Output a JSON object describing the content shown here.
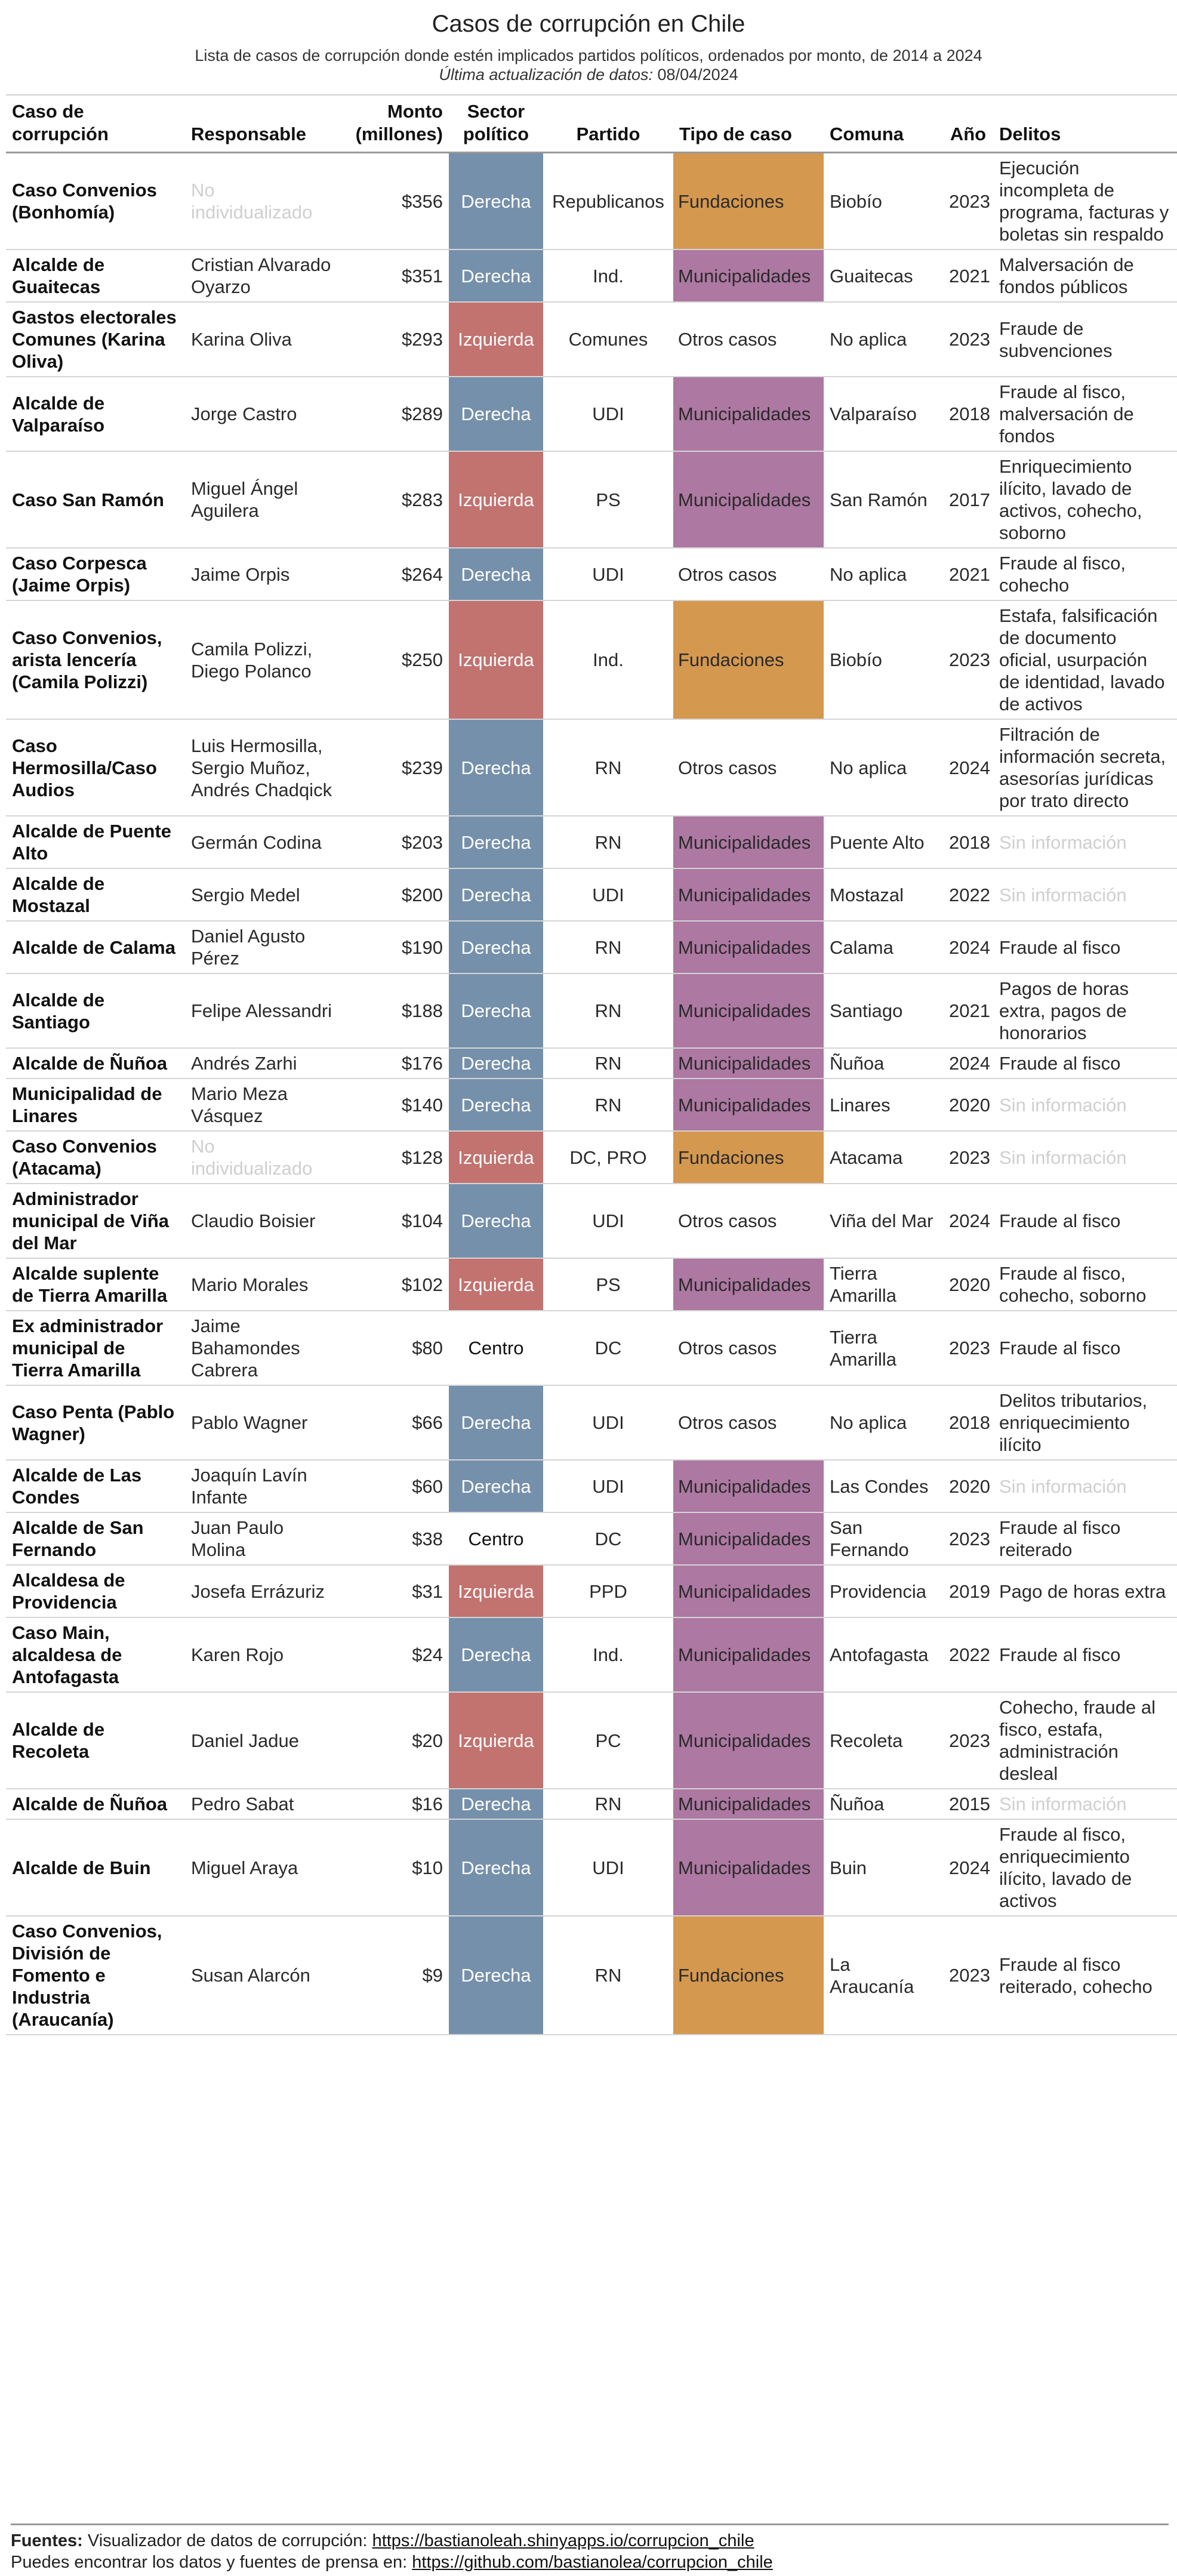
{
  "title": "Casos de corrupción en Chile",
  "subtitle": "Lista de casos de corrupción donde estén implicados partidos políticos, ordenados por monto, de 2014 a 2024",
  "updated_label": "Última actualización de datos:",
  "updated_date": "08/04/2024",
  "headers": {
    "caso": "Caso de corrupción",
    "responsable": "Responsable",
    "monto": "Monto (millones)",
    "sector": "Sector político",
    "partido": "Partido",
    "tipo": "Tipo de caso",
    "comuna": "Comuna",
    "anio": "Año",
    "delitos": "Delitos"
  },
  "colors": {
    "derecha": "#7590ab",
    "izquierda": "#c2726f",
    "fundaciones": "#d4984f",
    "municipalidades": "#ad78a2"
  },
  "rows": [
    {
      "caso": "Caso Convenios (Bonhomía)",
      "responsable": "No individualizado",
      "monto": "$356",
      "sector": "Derecha",
      "partido": "Republicanos",
      "tipo": "Fundaciones",
      "comuna": "Biobío",
      "anio": "2023",
      "delitos": "Ejecución incompleta de programa, facturas y boletas sin respaldo"
    },
    {
      "caso": "Alcalde de Guaitecas",
      "responsable": "Cristian Alvarado Oyarzo",
      "monto": "$351",
      "sector": "Derecha",
      "partido": "Ind.",
      "tipo": "Municipalidades",
      "comuna": "Guaitecas",
      "anio": "2021",
      "delitos": "Malversación de fondos públicos"
    },
    {
      "caso": "Gastos electorales Comunes (Karina Oliva)",
      "responsable": "Karina Oliva",
      "monto": "$293",
      "sector": "Izquierda",
      "partido": "Comunes",
      "tipo": "Otros casos",
      "comuna": "No aplica",
      "anio": "2023",
      "delitos": "Fraude de subvenciones"
    },
    {
      "caso": "Alcalde de Valparaíso",
      "responsable": "Jorge Castro",
      "monto": "$289",
      "sector": "Derecha",
      "partido": "UDI",
      "tipo": "Municipalidades",
      "comuna": "Valparaíso",
      "anio": "2018",
      "delitos": "Fraude al fisco, malversación de fondos"
    },
    {
      "caso": "Caso San Ramón",
      "responsable": "Miguel Ángel Aguilera",
      "monto": "$283",
      "sector": "Izquierda",
      "partido": "PS",
      "tipo": "Municipalidades",
      "comuna": "San Ramón",
      "anio": "2017",
      "delitos": "Enriquecimiento ilícito, lavado de activos, cohecho, soborno"
    },
    {
      "caso": "Caso Corpesca (Jaime Orpis)",
      "responsable": "Jaime Orpis",
      "monto": "$264",
      "sector": "Derecha",
      "partido": "UDI",
      "tipo": "Otros casos",
      "comuna": "No aplica",
      "anio": "2021",
      "delitos": "Fraude al fisco, cohecho"
    },
    {
      "caso": "Caso Convenios, arista lencería (Camila Polizzi)",
      "responsable": "Camila Polizzi, Diego Polanco",
      "monto": "$250",
      "sector": "Izquierda",
      "partido": "Ind.",
      "tipo": "Fundaciones",
      "comuna": "Biobío",
      "anio": "2023",
      "delitos": "Estafa, falsificación de documento oficial, usurpación de identidad, lavado de activos"
    },
    {
      "caso": "Caso Hermosilla/Caso Audios",
      "responsable": "Luis Hermosilla, Sergio Muñoz, Andrés Chadqick",
      "monto": "$239",
      "sector": "Derecha",
      "partido": "RN",
      "tipo": "Otros casos",
      "comuna": "No aplica",
      "anio": "2024",
      "delitos": "Filtración de información secreta, asesorías jurídicas por trato directo"
    },
    {
      "caso": "Alcalde de Puente Alto",
      "responsable": "Germán Codina",
      "monto": "$203",
      "sector": "Derecha",
      "partido": "RN",
      "tipo": "Municipalidades",
      "comuna": "Puente Alto",
      "anio": "2018",
      "delitos": "Sin información"
    },
    {
      "caso": "Alcalde de Mostazal",
      "responsable": "Sergio Medel",
      "monto": "$200",
      "sector": "Derecha",
      "partido": "UDI",
      "tipo": "Municipalidades",
      "comuna": "Mostazal",
      "anio": "2022",
      "delitos": "Sin información"
    },
    {
      "caso": "Alcalde de Calama",
      "responsable": "Daniel Agusto Pérez",
      "monto": "$190",
      "sector": "Derecha",
      "partido": "RN",
      "tipo": "Municipalidades",
      "comuna": "Calama",
      "anio": "2024",
      "delitos": "Fraude al fisco"
    },
    {
      "caso": "Alcalde de Santiago",
      "responsable": "Felipe Alessandri",
      "monto": "$188",
      "sector": "Derecha",
      "partido": "RN",
      "tipo": "Municipalidades",
      "comuna": "Santiago",
      "anio": "2021",
      "delitos": "Pagos de horas extra, pagos de honorarios"
    },
    {
      "caso": "Alcalde de Ñuñoa",
      "responsable": "Andrés Zarhi",
      "monto": "$176",
      "sector": "Derecha",
      "partido": "RN",
      "tipo": "Municipalidades",
      "comuna": "Ñuñoa",
      "anio": "2024",
      "delitos": "Fraude al fisco"
    },
    {
      "caso": "Municipalidad de Linares",
      "responsable": "Mario Meza Vásquez",
      "monto": "$140",
      "sector": "Derecha",
      "partido": "RN",
      "tipo": "Municipalidades",
      "comuna": "Linares",
      "anio": "2020",
      "delitos": "Sin información"
    },
    {
      "caso": "Caso Convenios (Atacama)",
      "responsable": "No individualizado",
      "monto": "$128",
      "sector": "Izquierda",
      "partido": "DC, PRO",
      "tipo": "Fundaciones",
      "comuna": "Atacama",
      "anio": "2023",
      "delitos": "Sin información"
    },
    {
      "caso": "Administrador municipal de Viña del Mar",
      "responsable": "Claudio Boisier",
      "monto": "$104",
      "sector": "Derecha",
      "partido": "UDI",
      "tipo": "Otros casos",
      "comuna": "Viña del Mar",
      "anio": "2024",
      "delitos": "Fraude al fisco"
    },
    {
      "caso": "Alcalde suplente de Tierra Amarilla",
      "responsable": "Mario Morales",
      "monto": "$102",
      "sector": "Izquierda",
      "partido": "PS",
      "tipo": "Municipalidades",
      "comuna": "Tierra Amarilla",
      "anio": "2020",
      "delitos": "Fraude al fisco, cohecho, soborno"
    },
    {
      "caso": "Ex administrador municipal de Tierra Amarilla",
      "responsable": "Jaime Bahamondes Cabrera",
      "monto": "$80",
      "sector": "Centro",
      "partido": "DC",
      "tipo": "Otros casos",
      "comuna": "Tierra Amarilla",
      "anio": "2023",
      "delitos": "Fraude al fisco"
    },
    {
      "caso": "Caso Penta (Pablo Wagner)",
      "responsable": "Pablo Wagner",
      "monto": "$66",
      "sector": "Derecha",
      "partido": "UDI",
      "tipo": "Otros casos",
      "comuna": "No aplica",
      "anio": "2018",
      "delitos": "Delitos tributarios, enriquecimiento ilícito"
    },
    {
      "caso": "Alcalde de Las Condes",
      "responsable": "Joaquín Lavín Infante",
      "monto": "$60",
      "sector": "Derecha",
      "partido": "UDI",
      "tipo": "Municipalidades",
      "comuna": "Las Condes",
      "anio": "2020",
      "delitos": "Sin información"
    },
    {
      "caso": "Alcalde de San Fernando",
      "responsable": "Juan Paulo Molina",
      "monto": "$38",
      "sector": "Centro",
      "partido": "DC",
      "tipo": "Municipalidades",
      "comuna": "San Fernando",
      "anio": "2023",
      "delitos": "Fraude al fisco reiterado"
    },
    {
      "caso": "Alcaldesa de Providencia",
      "responsable": "Josefa Errázuriz",
      "monto": "$31",
      "sector": "Izquierda",
      "partido": "PPD",
      "tipo": "Municipalidades",
      "comuna": "Providencia",
      "anio": "2019",
      "delitos": "Pago de horas extra"
    },
    {
      "caso": "Caso Main, alcaldesa de Antofagasta",
      "responsable": "Karen Rojo",
      "monto": "$24",
      "sector": "Derecha",
      "partido": "Ind.",
      "tipo": "Municipalidades",
      "comuna": "Antofagasta",
      "anio": "2022",
      "delitos": "Fraude al fisco"
    },
    {
      "caso": "Alcalde de Recoleta",
      "responsable": "Daniel Jadue",
      "monto": "$20",
      "sector": "Izquierda",
      "partido": "PC",
      "tipo": "Municipalidades",
      "comuna": "Recoleta",
      "anio": "2023",
      "delitos": "Cohecho, fraude al fisco, estafa, administración desleal"
    },
    {
      "caso": "Alcalde de Ñuñoa",
      "responsable": "Pedro Sabat",
      "monto": "$16",
      "sector": "Derecha",
      "partido": "RN",
      "tipo": "Municipalidades",
      "comuna": "Ñuñoa",
      "anio": "2015",
      "delitos": "Sin información"
    },
    {
      "caso": "Alcalde de Buin",
      "responsable": "Miguel Araya",
      "monto": "$10",
      "sector": "Derecha",
      "partido": "UDI",
      "tipo": "Municipalidades",
      "comuna": "Buin",
      "anio": "2024",
      "delitos": "Fraude al fisco, enriquecimiento ilícito, lavado de activos"
    },
    {
      "caso": "Caso Convenios, División de Fomento e Industria (Araucanía)",
      "responsable": "Susan Alarcón",
      "monto": "$9",
      "sector": "Derecha",
      "partido": "RN",
      "tipo": "Fundaciones",
      "comuna": "La Araucanía",
      "anio": "2023",
      "delitos": "Fraude al fisco reiterado, cohecho"
    }
  ],
  "footer": {
    "fuentes_label": "Fuentes:",
    "line1_text": "Visualizador de datos de corrupción:",
    "line1_link": "https://bastianoleah.shinyapps.io/corrupcion_chile",
    "line2_text": "Puedes encontrar los datos y fuentes de prensa en:",
    "line2_link": "https://github.com/bastianolea/corrupcion_chile"
  }
}
